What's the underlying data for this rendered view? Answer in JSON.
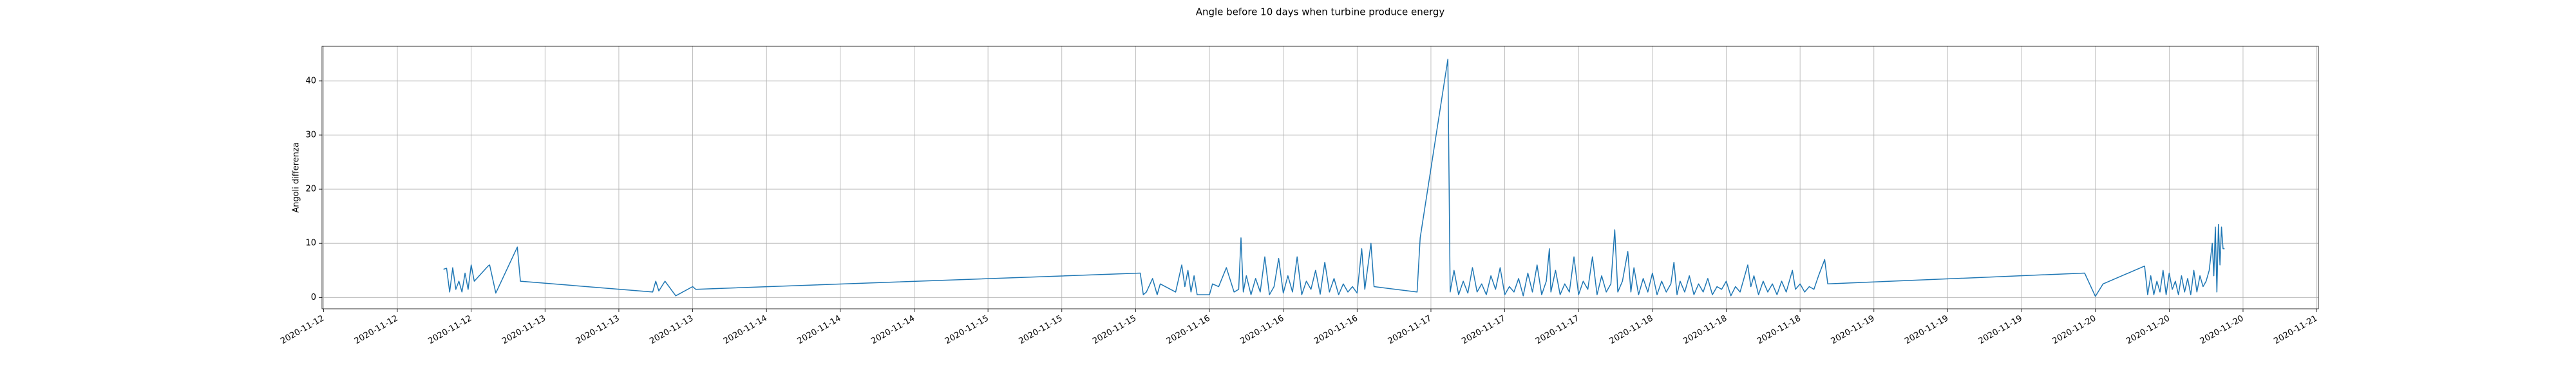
{
  "chart_data": {
    "type": "line",
    "title": "Angle before 10 days when turbine produce energy",
    "ylabel": "Angoli differenza",
    "color": "#1f77b4",
    "grid": true,
    "x": [
      "2020-11-12T13:00",
      "2020-11-12T13:20",
      "2020-11-12T13:40",
      "2020-11-12T14:00",
      "2020-11-12T14:20",
      "2020-11-12T14:40",
      "2020-11-12T15:00",
      "2020-11-12T15:20",
      "2020-11-12T15:40",
      "2020-11-12T16:00",
      "2020-11-12T16:20",
      "2020-11-12T17:50",
      "2020-11-12T18:00",
      "2020-11-12T18:40",
      "2020-11-12T21:00",
      "2020-11-12T21:20",
      "2020-11-13T11:40",
      "2020-11-13T12:00",
      "2020-11-13T12:20",
      "2020-11-13T13:00",
      "2020-11-13T14:10",
      "2020-11-13T16:00",
      "2020-11-13T16:20",
      "2020-11-15T16:30",
      "2020-11-15T16:50",
      "2020-11-15T17:10",
      "2020-11-15T17:50",
      "2020-11-15T18:20",
      "2020-11-15T18:40",
      "2020-11-15T20:20",
      "2020-11-15T21:00",
      "2020-11-15T21:20",
      "2020-11-15T21:40",
      "2020-11-15T22:00",
      "2020-11-15T22:20",
      "2020-11-15T22:40",
      "2020-11-16T00:00",
      "2020-11-16T00:20",
      "2020-11-16T01:00",
      "2020-11-16T01:50",
      "2020-11-16T02:40",
      "2020-11-16T03:10",
      "2020-11-16T03:25",
      "2020-11-16T03:40",
      "2020-11-16T04:00",
      "2020-11-16T04:30",
      "2020-11-16T05:00",
      "2020-11-16T05:30",
      "2020-11-16T06:00",
      "2020-11-16T06:30",
      "2020-11-16T07:00",
      "2020-11-16T07:30",
      "2020-11-16T08:00",
      "2020-11-16T08:30",
      "2020-11-16T09:00",
      "2020-11-16T09:30",
      "2020-11-16T10:00",
      "2020-11-16T10:30",
      "2020-11-16T11:00",
      "2020-11-16T11:30",
      "2020-11-16T12:00",
      "2020-11-16T12:30",
      "2020-11-16T13:00",
      "2020-11-16T13:30",
      "2020-11-16T14:00",
      "2020-11-16T14:30",
      "2020-11-16T15:00",
      "2020-11-16T15:30",
      "2020-11-16T16:00",
      "2020-11-16T16:30",
      "2020-11-16T16:50",
      "2020-11-16T17:30",
      "2020-11-16T17:50",
      "2020-11-16T22:30",
      "2020-11-16T22:50",
      "2020-11-17T01:50",
      "2020-11-17T02:05",
      "2020-11-17T02:30",
      "2020-11-17T03:00",
      "2020-11-17T03:30",
      "2020-11-17T04:00",
      "2020-11-17T04:30",
      "2020-11-17T05:00",
      "2020-11-17T05:30",
      "2020-11-17T06:00",
      "2020-11-17T06:30",
      "2020-11-17T07:00",
      "2020-11-17T07:30",
      "2020-11-17T08:00",
      "2020-11-17T08:30",
      "2020-11-17T09:00",
      "2020-11-17T09:30",
      "2020-11-17T10:00",
      "2020-11-17T10:30",
      "2020-11-17T11:00",
      "2020-11-17T11:30",
      "2020-11-17T12:00",
      "2020-11-17T12:30",
      "2020-11-17T12:50",
      "2020-11-17T13:00",
      "2020-11-17T13:30",
      "2020-11-17T14:00",
      "2020-11-17T14:30",
      "2020-11-17T15:00",
      "2020-11-17T15:30",
      "2020-11-17T16:00",
      "2020-11-17T16:30",
      "2020-11-17T17:00",
      "2020-11-17T17:30",
      "2020-11-17T18:00",
      "2020-11-17T18:30",
      "2020-11-17T19:00",
      "2020-11-17T19:30",
      "2020-11-17T19:55",
      "2020-11-17T20:15",
      "2020-11-17T20:45",
      "2020-11-17T21:20",
      "2020-11-17T21:40",
      "2020-11-17T22:00",
      "2020-11-17T22:30",
      "2020-11-17T23:00",
      "2020-11-17T23:30",
      "2020-11-18T00:00",
      "2020-11-18T00:30",
      "2020-11-18T01:00",
      "2020-11-18T01:30",
      "2020-11-18T02:00",
      "2020-11-18T02:20",
      "2020-11-18T02:40",
      "2020-11-18T03:00",
      "2020-11-18T03:30",
      "2020-11-18T04:00",
      "2020-11-18T04:30",
      "2020-11-18T05:00",
      "2020-11-18T05:30",
      "2020-11-18T06:00",
      "2020-11-18T06:30",
      "2020-11-18T07:00",
      "2020-11-18T07:30",
      "2020-11-18T08:00",
      "2020-11-18T08:30",
      "2020-11-18T09:00",
      "2020-11-18T09:30",
      "2020-11-18T10:20",
      "2020-11-18T10:40",
      "2020-11-18T11:00",
      "2020-11-18T11:30",
      "2020-11-18T12:00",
      "2020-11-18T12:30",
      "2020-11-18T13:00",
      "2020-11-18T13:30",
      "2020-11-18T14:00",
      "2020-11-18T14:30",
      "2020-11-18T15:10",
      "2020-11-18T15:30",
      "2020-11-18T16:00",
      "2020-11-18T16:30",
      "2020-11-18T17:00",
      "2020-11-18T17:30",
      "2020-11-18T18:00",
      "2020-11-18T18:40",
      "2020-11-18T19:00",
      "2020-11-19T22:50",
      "2020-11-20T00:00",
      "2020-11-20T00:50",
      "2020-11-20T05:20",
      "2020-11-20T05:40",
      "2020-11-20T06:00",
      "2020-11-20T06:20",
      "2020-11-20T06:40",
      "2020-11-20T07:00",
      "2020-11-20T07:20",
      "2020-11-20T07:40",
      "2020-11-20T08:00",
      "2020-11-20T08:20",
      "2020-11-20T08:40",
      "2020-11-20T09:00",
      "2020-11-20T09:20",
      "2020-11-20T09:40",
      "2020-11-20T10:00",
      "2020-11-20T10:20",
      "2020-11-20T10:40",
      "2020-11-20T11:00",
      "2020-11-20T11:20",
      "2020-11-20T11:40",
      "2020-11-20T12:00",
      "2020-11-20T12:20",
      "2020-11-20T12:40",
      "2020-11-20T12:50",
      "2020-11-20T13:00",
      "2020-11-20T13:10",
      "2020-11-20T13:20",
      "2020-11-20T13:30",
      "2020-11-20T13:40",
      "2020-11-20T13:50",
      "2020-11-20T14:00"
    ],
    "values": [
      5.2,
      5.4,
      1,
      5.5,
      1.5,
      3,
      1,
      4.5,
      1.5,
      6,
      3,
      5.8,
      6,
      0.8,
      9.3,
      3,
      1,
      3,
      1.2,
      3,
      0.3,
      2,
      1.5,
      4.5,
      0.5,
      1,
      3.5,
      0.5,
      2.5,
      1,
      6,
      2,
      5,
      1,
      4,
      0.5,
      0.5,
      2.5,
      2,
      5.5,
      1,
      1.5,
      11,
      1,
      4,
      0.5,
      3.5,
      1,
      7.5,
      0.5,
      2,
      7.2,
      0.8,
      4,
      1,
      7.5,
      0.5,
      3,
      1.5,
      5,
      0.6,
      6.5,
      1,
      3.5,
      0.5,
      2.5,
      1,
      2,
      0.8,
      9,
      1.5,
      10,
      2,
      1,
      11,
      44,
      1,
      5,
      0.5,
      3,
      0.8,
      5.5,
      1,
      2.5,
      0.5,
      4,
      1.5,
      5.5,
      0.5,
      2,
      1,
      3.5,
      0.3,
      4.5,
      1,
      6,
      0.5,
      3,
      9,
      1,
      5,
      0.5,
      2.5,
      1,
      7.5,
      0.5,
      3,
      1.5,
      7.5,
      0.5,
      4,
      1,
      2.5,
      12.5,
      1,
      3,
      8.5,
      1,
      5.5,
      0.5,
      3.5,
      1,
      4.5,
      0.5,
      3,
      1,
      2.5,
      6.5,
      0.5,
      3,
      1,
      4,
      0.5,
      2.5,
      1,
      3.5,
      0.5,
      2,
      1.5,
      3,
      0.3,
      2,
      1,
      6,
      2,
      4,
      0.5,
      3,
      1,
      2.5,
      0.5,
      3,
      1,
      5,
      1.5,
      2.5,
      1,
      2,
      1.5,
      4,
      7,
      2.5,
      4.5,
      0.2,
      2.5,
      5.8,
      0.5,
      4,
      0.5,
      3,
      1,
      5,
      0.5,
      4.5,
      1.5,
      3,
      0.5,
      4,
      1,
      3.5,
      0.5,
      5,
      1,
      4,
      2,
      3,
      5,
      10,
      4,
      13,
      1,
      13.5,
      6,
      13,
      9,
      9
    ],
    "xlim": [
      "2020-11-11T23:50",
      "2020-11-21T00:10"
    ],
    "xticks": [
      {
        "value": "2020-11-12T00:00",
        "label": "2020-11-12"
      },
      {
        "value": "2020-11-12T08:00",
        "label": "2020-11-12"
      },
      {
        "value": "2020-11-12T16:00",
        "label": "2020-11-12"
      },
      {
        "value": "2020-11-13T00:00",
        "label": "2020-11-13"
      },
      {
        "value": "2020-11-13T08:00",
        "label": "2020-11-13"
      },
      {
        "value": "2020-11-13T16:00",
        "label": "2020-11-13"
      },
      {
        "value": "2020-11-14T00:00",
        "label": "2020-11-14"
      },
      {
        "value": "2020-11-14T08:00",
        "label": "2020-11-14"
      },
      {
        "value": "2020-11-14T16:00",
        "label": "2020-11-14"
      },
      {
        "value": "2020-11-15T00:00",
        "label": "2020-11-15"
      },
      {
        "value": "2020-11-15T08:00",
        "label": "2020-11-15"
      },
      {
        "value": "2020-11-15T16:00",
        "label": "2020-11-15"
      },
      {
        "value": "2020-11-16T00:00",
        "label": "2020-11-16"
      },
      {
        "value": "2020-11-16T08:00",
        "label": "2020-11-16"
      },
      {
        "value": "2020-11-16T16:00",
        "label": "2020-11-16"
      },
      {
        "value": "2020-11-17T00:00",
        "label": "2020-11-17"
      },
      {
        "value": "2020-11-17T08:00",
        "label": "2020-11-17"
      },
      {
        "value": "2020-11-17T16:00",
        "label": "2020-11-17"
      },
      {
        "value": "2020-11-18T00:00",
        "label": "2020-11-18"
      },
      {
        "value": "2020-11-18T08:00",
        "label": "2020-11-18"
      },
      {
        "value": "2020-11-18T16:00",
        "label": "2020-11-18"
      },
      {
        "value": "2020-11-19T00:00",
        "label": "2020-11-19"
      },
      {
        "value": "2020-11-19T08:00",
        "label": "2020-11-19"
      },
      {
        "value": "2020-11-19T16:00",
        "label": "2020-11-19"
      },
      {
        "value": "2020-11-20T00:00",
        "label": "2020-11-20"
      },
      {
        "value": "2020-11-20T08:00",
        "label": "2020-11-20"
      },
      {
        "value": "2020-11-20T16:00",
        "label": "2020-11-20"
      },
      {
        "value": "2020-11-21T00:00",
        "label": "2020-11-21"
      }
    ],
    "ylim": [
      -2.1,
      46.4
    ],
    "yticks": [
      0,
      10,
      20,
      30,
      40
    ]
  }
}
